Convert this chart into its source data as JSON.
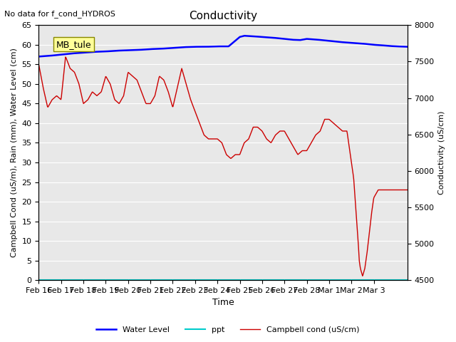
{
  "title": "Conductivity",
  "top_left_text": "No data for f_cond_HYDROS",
  "xlabel": "Time",
  "ylabel_left": "Campbell Cond (uS/m), Rain (mm), Water Level (cm)",
  "ylabel_right": "Conductivity (uS/cm)",
  "legend_label_box": "MB_tule",
  "ylim_left": [
    0,
    65
  ],
  "ylim_right": [
    4500,
    8000
  ],
  "yticks_left": [
    0,
    5,
    10,
    15,
    20,
    25,
    30,
    35,
    40,
    45,
    50,
    55,
    60,
    65
  ],
  "yticks_right": [
    4500,
    5000,
    5500,
    6000,
    6500,
    7000,
    7500,
    8000
  ],
  "xtick_labels": [
    "Feb 16",
    "Feb 17",
    "Feb 18",
    "Feb 19",
    "Feb 20",
    "Feb 21",
    "Feb 22",
    "Feb 23",
    "Feb 24",
    "Feb 25",
    "Feb 26",
    "Feb 27",
    "Feb 28",
    "Mar 1",
    "Mar 2",
    "Mar 3"
  ],
  "plot_bg_color": "#e8e8e8",
  "grid_color": "#ffffff",
  "water_level_color": "#0000ff",
  "ppt_color": "#00cccc",
  "campbell_cond_color": "#cc0000",
  "legend_entries": [
    "Water Level",
    "ppt",
    "Campbell cond (uS/cm)"
  ],
  "key_wl_x": [
    0,
    0.5,
    1,
    1.5,
    2,
    2.5,
    3,
    3.5,
    4,
    4.5,
    5,
    5.5,
    6,
    6.5,
    7,
    7.5,
    8,
    8.5,
    9,
    9.2,
    9.5,
    10,
    10.5,
    11,
    11.3,
    11.7,
    12,
    12.5,
    13,
    13.5,
    14,
    14.5,
    15,
    15.3,
    15.7,
    16,
    16.5
  ],
  "key_wl_y": [
    57.0,
    57.2,
    57.5,
    57.8,
    58.0,
    58.2,
    58.3,
    58.5,
    58.6,
    58.7,
    58.9,
    59.0,
    59.2,
    59.4,
    59.5,
    59.5,
    59.6,
    59.6,
    62.0,
    62.3,
    62.2,
    62.0,
    61.8,
    61.5,
    61.3,
    61.2,
    61.5,
    61.3,
    61.0,
    60.7,
    60.5,
    60.3,
    60.0,
    59.9,
    59.7,
    59.6,
    59.5
  ],
  "key_cc_x": [
    0,
    0.2,
    0.4,
    0.6,
    0.8,
    1.0,
    1.2,
    1.4,
    1.6,
    1.8,
    2.0,
    2.2,
    2.4,
    2.6,
    2.8,
    3.0,
    3.2,
    3.4,
    3.6,
    3.8,
    4.0,
    4.2,
    4.4,
    4.6,
    4.8,
    5.0,
    5.2,
    5.4,
    5.6,
    5.8,
    6.0,
    6.2,
    6.4,
    6.6,
    6.8,
    7.0,
    7.2,
    7.4,
    7.6,
    7.8,
    8.0,
    8.2,
    8.4,
    8.6,
    8.8,
    9.0,
    9.2,
    9.4,
    9.6,
    9.8,
    10.0,
    10.2,
    10.4,
    10.6,
    10.8,
    11.0,
    11.2,
    11.4,
    11.6,
    11.8,
    12.0,
    12.2,
    12.4,
    12.6,
    12.8,
    13.0,
    13.2,
    13.4,
    13.6,
    13.8,
    14.0,
    14.1,
    14.2,
    14.3,
    14.35,
    14.4,
    14.5,
    14.6,
    14.7,
    14.8,
    14.9,
    15.0,
    15.2,
    15.4,
    15.6,
    15.8,
    16.0,
    16.2,
    16.5
  ],
  "key_cc_y": [
    55,
    49,
    44,
    46,
    47,
    46,
    57,
    54,
    53,
    50,
    45,
    46,
    48,
    47,
    48,
    52,
    50,
    46,
    45,
    47,
    53,
    52,
    51,
    48,
    45,
    45,
    47,
    52,
    51,
    48,
    44,
    49,
    54,
    50,
    46,
    43,
    40,
    37,
    36,
    36,
    36,
    35,
    32,
    31,
    32,
    32,
    35,
    36,
    39,
    39,
    38,
    36,
    35,
    37,
    38,
    38,
    36,
    34,
    32,
    33,
    33,
    35,
    37,
    38,
    41,
    41,
    40,
    39,
    38,
    38,
    30,
    26,
    18,
    10,
    5,
    3,
    1,
    3,
    7,
    12,
    17,
    21,
    23,
    23,
    23,
    23,
    23,
    23,
    23
  ]
}
